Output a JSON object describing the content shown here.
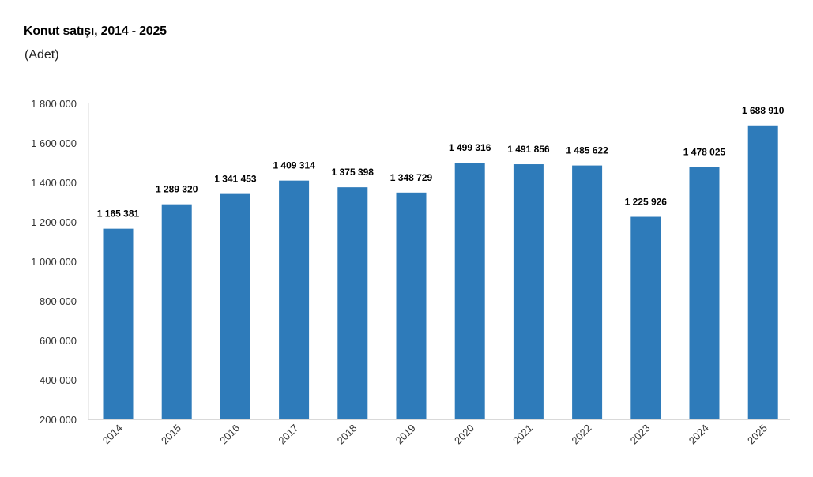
{
  "chart_data": {
    "type": "bar",
    "title": "Konut satışı, 2014 - 2025",
    "subtitle": "(Adet)",
    "xlabel": "",
    "ylabel": "",
    "categories": [
      "2014",
      "2015",
      "2016",
      "2017",
      "2018",
      "2019",
      "2020",
      "2021",
      "2022",
      "2023",
      "2024",
      "2025"
    ],
    "values": [
      1165381,
      1289320,
      1341453,
      1409314,
      1375398,
      1348729,
      1499316,
      1491856,
      1485622,
      1225926,
      1478025,
      1688910
    ],
    "data_labels": [
      "1 165 381",
      "1 289 320",
      "1 341 453",
      "1 409 314",
      "1 375 398",
      "1 348 729",
      "1 499 316",
      "1 491 856",
      "1 485 622",
      "1 225 926",
      "1 478 025",
      "1 688 910"
    ],
    "ylim": [
      200000,
      1800000
    ],
    "yticks": [
      200000,
      400000,
      600000,
      800000,
      1000000,
      1200000,
      1400000,
      1600000,
      1800000
    ],
    "ytick_labels": [
      "200 000",
      "400 000",
      "600 000",
      "800 000",
      "1 000 000",
      "1 200 000",
      "1 400 000",
      "1 600 000",
      "1 800 000"
    ],
    "bar_color": "#2E7BBA",
    "grid": false,
    "legend": "none"
  }
}
